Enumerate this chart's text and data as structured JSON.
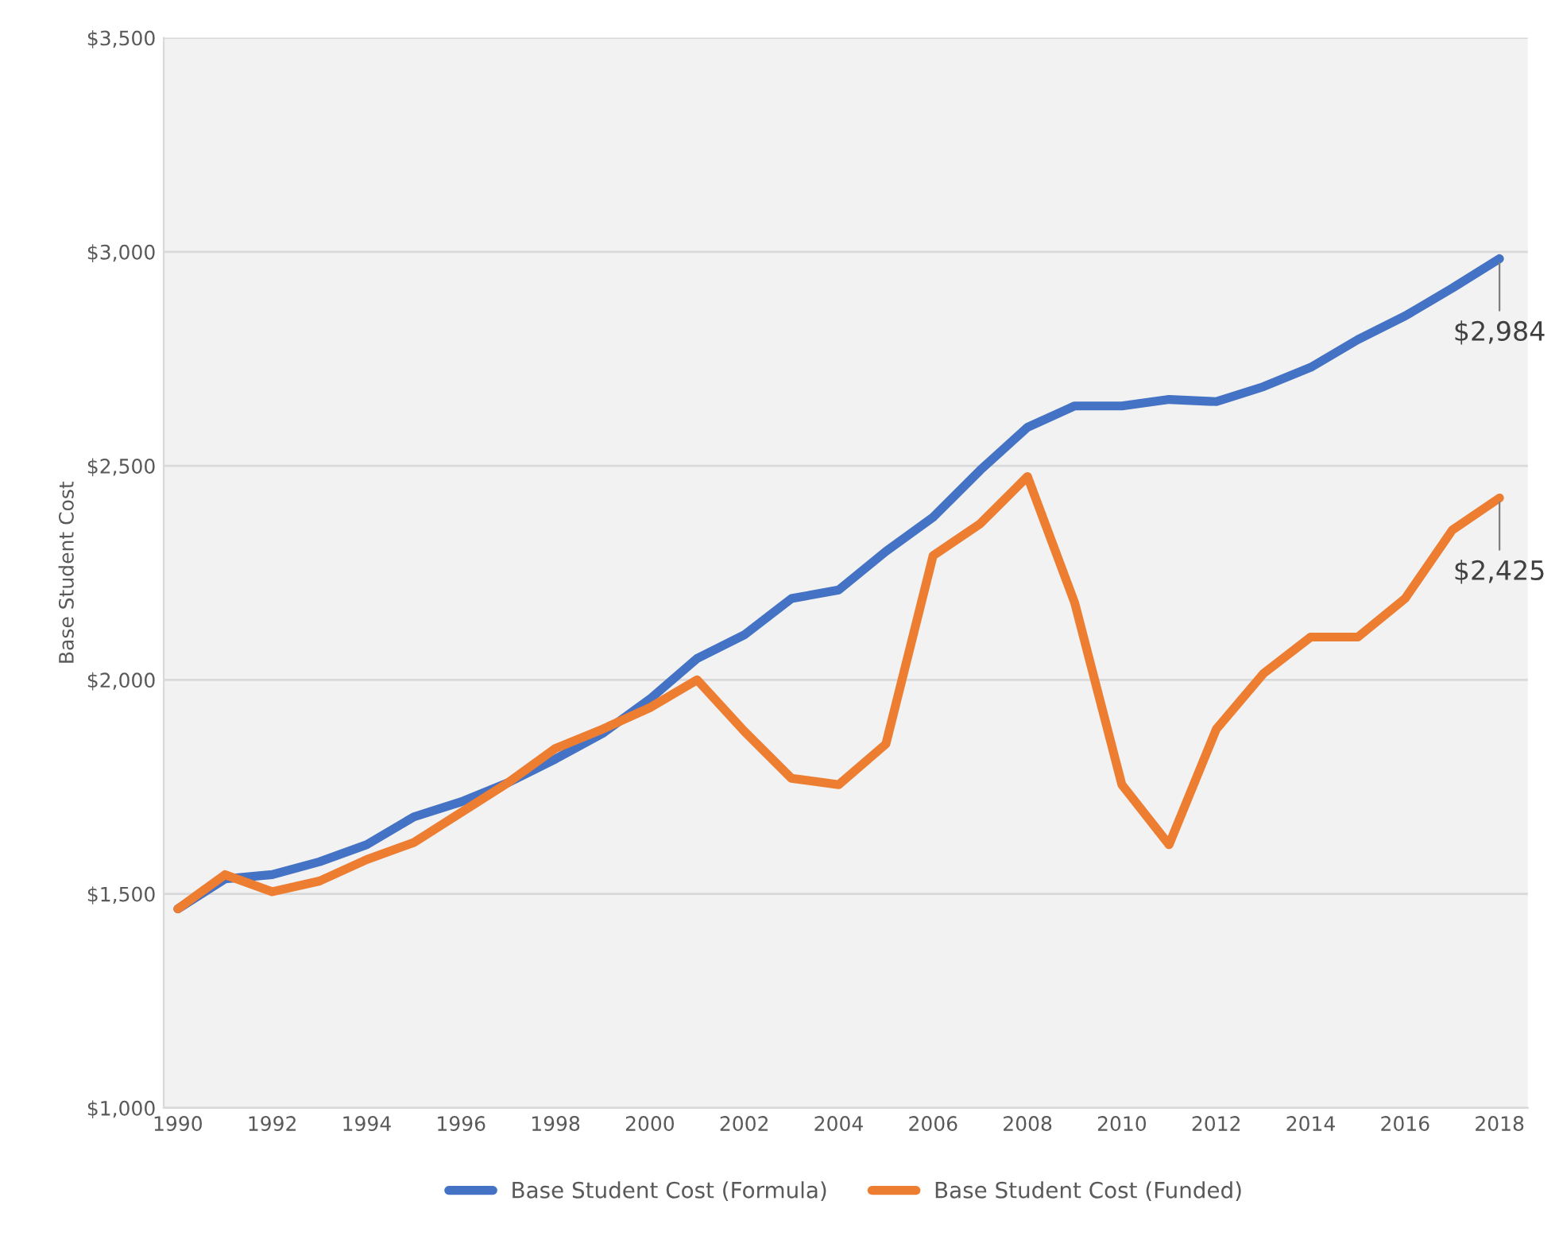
{
  "chart_data": {
    "type": "line",
    "ylabel": "Base Student Cost",
    "x": [
      1990,
      1991,
      1992,
      1993,
      1994,
      1995,
      1996,
      1997,
      1998,
      1999,
      2000,
      2001,
      2002,
      2003,
      2004,
      2005,
      2006,
      2007,
      2008,
      2009,
      2010,
      2011,
      2012,
      2013,
      2014,
      2015,
      2016,
      2017,
      2018
    ],
    "series": [
      {
        "name": "Base Student Cost (Formula)",
        "color": "#4472c4",
        "values": [
          1465,
          1535,
          1545,
          1575,
          1615,
          1680,
          1715,
          1760,
          1815,
          1875,
          1955,
          2050,
          2105,
          2190,
          2210,
          2300,
          2380,
          2490,
          2590,
          2640,
          2640,
          2655,
          2650,
          2685,
          2730,
          2795,
          2850,
          2915,
          2984
        ],
        "value_labels": [
          null,
          null,
          null,
          null,
          null,
          null,
          null,
          null,
          null,
          null,
          null,
          null,
          null,
          null,
          null,
          null,
          null,
          null,
          null,
          null,
          null,
          null,
          null,
          null,
          null,
          null,
          null,
          null,
          "$2,984"
        ]
      },
      {
        "name": "Base Student Cost (Funded)",
        "color": "#ed7d31",
        "values": [
          1465,
          1545,
          1505,
          1530,
          1580,
          1620,
          1690,
          1760,
          1840,
          1885,
          1935,
          2000,
          1880,
          1770,
          1755,
          1850,
          2290,
          2365,
          2475,
          2180,
          1755,
          1615,
          1885,
          2015,
          2100,
          2100,
          2190,
          2350,
          2425
        ],
        "value_labels": [
          null,
          null,
          null,
          null,
          null,
          null,
          null,
          null,
          null,
          null,
          null,
          null,
          null,
          null,
          null,
          null,
          null,
          null,
          null,
          null,
          null,
          null,
          null,
          null,
          null,
          null,
          null,
          null,
          "$2,425"
        ]
      }
    ],
    "xlim": [
      1989.7,
      2018.6
    ],
    "xticks": [
      1990,
      1992,
      1994,
      1996,
      1998,
      2000,
      2002,
      2004,
      2006,
      2008,
      2010,
      2012,
      2014,
      2016,
      2018
    ],
    "ylim": [
      1000,
      3500
    ],
    "yticks": [
      {
        "value": 1000,
        "label": "$1,000"
      },
      {
        "value": 1500,
        "label": "$1,500"
      },
      {
        "value": 2000,
        "label": "$2,000"
      },
      {
        "value": 2500,
        "label": "$2,500"
      },
      {
        "value": 3000,
        "label": "$3,000"
      },
      {
        "value": 3500,
        "label": "$3,500"
      }
    ],
    "grid": "y",
    "legend": "bottom",
    "marker": "none",
    "line_style": "solid"
  }
}
